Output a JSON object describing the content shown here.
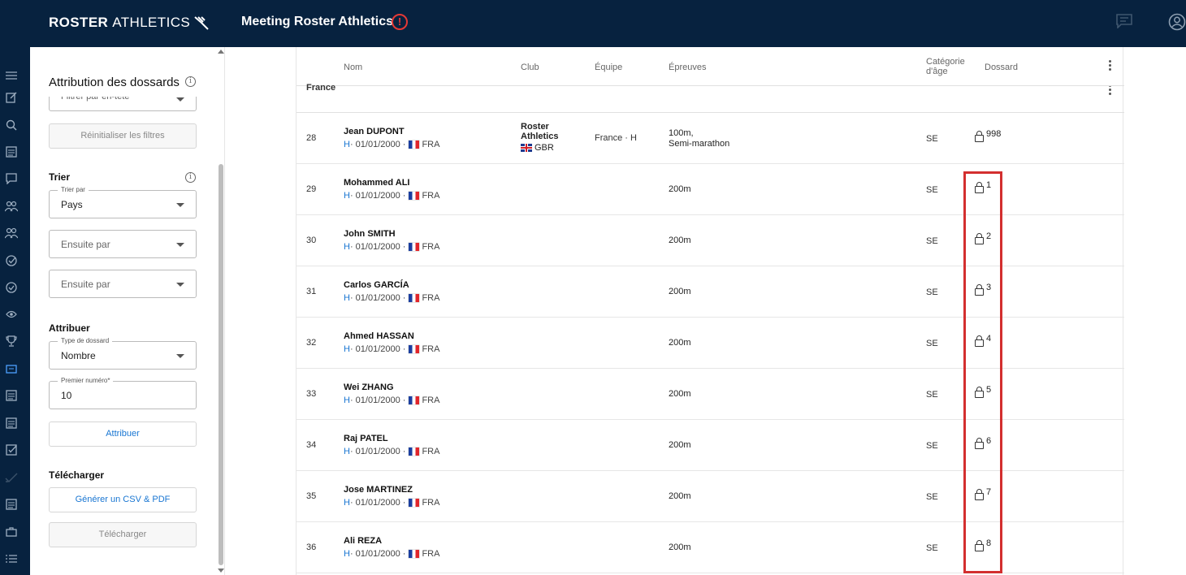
{
  "header": {
    "logo_bold": "ROSTER",
    "logo_light": "ATHLETICS",
    "meeting_title": "Meeting Roster Athletics",
    "alert_mark": "!"
  },
  "panel": {
    "title": "Attribution des dossards",
    "filter_placeholder": "Filtrer par en-tête",
    "reset_filters": "Réinitialiser les filtres",
    "sort_section": "Trier",
    "sort_by_label": "Trier par",
    "sort_by_value": "Pays",
    "then_by_1": "Ensuite par",
    "then_by_2": "Ensuite par",
    "assign_section": "Attribuer",
    "bib_type_label": "Type de dossard",
    "bib_type_value": "Nombre",
    "first_number_label": "Premier numéro*",
    "first_number_value": "10",
    "assign_button": "Attribuer",
    "download_section": "Télécharger",
    "generate_button": "Générer un CSV & PDF",
    "download_button": "Télécharger"
  },
  "table": {
    "columns": {
      "name": "Nom",
      "club": "Club",
      "team": "Équipe",
      "events": "Épreuves",
      "age_cat_1": "Catégorie",
      "age_cat_2": "d'âge",
      "bib": "Dossard"
    },
    "group_label": "France",
    "rows": [
      {
        "num": "28",
        "name": "Jean DUPONT",
        "gender": "H",
        "dob": " · 01/01/2000 · ",
        "country": "FRA",
        "club": "Roster Athletics",
        "club_country": "GBR",
        "team": "France · H",
        "events": "100m,",
        "events2": "Semi-marathon",
        "cat": "SE",
        "bib": "998"
      },
      {
        "num": "29",
        "name": "Mohammed ALI",
        "gender": "H",
        "dob": " · 01/01/2000 · ",
        "country": "FRA",
        "club": "",
        "club_country": "",
        "team": "",
        "events": "200m",
        "events2": "",
        "cat": "SE",
        "bib": "1"
      },
      {
        "num": "30",
        "name": "John SMITH",
        "gender": "H",
        "dob": " · 01/01/2000 · ",
        "country": "FRA",
        "club": "",
        "club_country": "",
        "team": "",
        "events": "200m",
        "events2": "",
        "cat": "SE",
        "bib": "2"
      },
      {
        "num": "31",
        "name": "Carlos GARCÍA",
        "gender": "H",
        "dob": " · 01/01/2000 · ",
        "country": "FRA",
        "club": "",
        "club_country": "",
        "team": "",
        "events": "200m",
        "events2": "",
        "cat": "SE",
        "bib": "3"
      },
      {
        "num": "32",
        "name": "Ahmed HASSAN",
        "gender": "H",
        "dob": " · 01/01/2000 · ",
        "country": "FRA",
        "club": "",
        "club_country": "",
        "team": "",
        "events": "200m",
        "events2": "",
        "cat": "SE",
        "bib": "4"
      },
      {
        "num": "33",
        "name": "Wei ZHANG",
        "gender": "H",
        "dob": " · 01/01/2000 · ",
        "country": "FRA",
        "club": "",
        "club_country": "",
        "team": "",
        "events": "200m",
        "events2": "",
        "cat": "SE",
        "bib": "5"
      },
      {
        "num": "34",
        "name": "Raj PATEL",
        "gender": "H",
        "dob": " · 01/01/2000 · ",
        "country": "FRA",
        "club": "",
        "club_country": "",
        "team": "",
        "events": "200m",
        "events2": "",
        "cat": "SE",
        "bib": "6"
      },
      {
        "num": "35",
        "name": "Jose MARTINEZ",
        "gender": "H",
        "dob": " · 01/01/2000 · ",
        "country": "FRA",
        "club": "",
        "club_country": "",
        "team": "",
        "events": "200m",
        "events2": "",
        "cat": "SE",
        "bib": "7"
      },
      {
        "num": "36",
        "name": "Ali REZA",
        "gender": "H",
        "dob": " · 01/01/2000 · ",
        "country": "FRA",
        "club": "",
        "club_country": "",
        "team": "",
        "events": "200m",
        "events2": "",
        "cat": "SE",
        "bib": "8"
      }
    ]
  },
  "colors": {
    "header_bg": "#07223f",
    "accent": "#1976d2",
    "highlight": "#d32f2f"
  },
  "icons": {
    "rail": [
      "menu-icon",
      "edit-icon",
      "search-icon",
      "list-icon",
      "chat-icon",
      "people-icon",
      "people-icon",
      "check-circle-icon",
      "check-circle-icon",
      "eye-icon",
      "trophy-icon",
      "bib-icon",
      "list-icon",
      "list-icon",
      "checkbox-icon",
      "check-icon",
      "list-icon",
      "briefcase-icon",
      "menu-list-icon"
    ]
  }
}
